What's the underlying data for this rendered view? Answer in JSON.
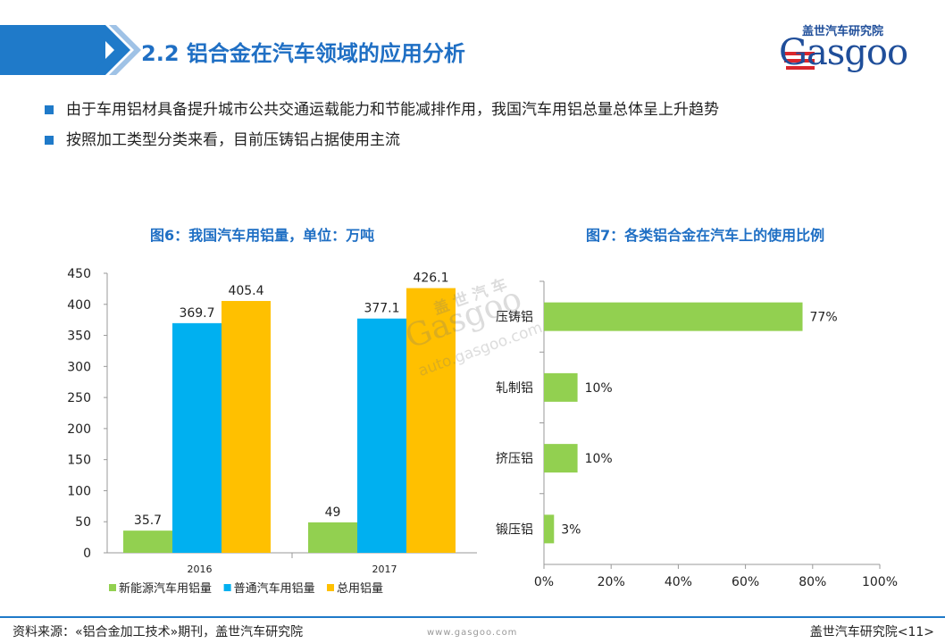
{
  "header": {
    "title": "2.2 铝合金在汽车领域的应用分析",
    "accent_color": "#1f7ac9"
  },
  "logo": {
    "cn": "盖世汽车研究院",
    "en": "Gasgoo"
  },
  "bullets": [
    "由于车用铝材具备提升城市公共交通运载能力和节能减排作用，我国汽车用铝总量总体呈上升趋势",
    "按照加工类型分类来看，目前压铸铝占据使用主流"
  ],
  "watermark": {
    "cn": "盖 世 汽 车",
    "en": "Gasgoo",
    "url": "auto.gasgoo.com"
  },
  "chart_data": [
    {
      "type": "bar",
      "title": "图6：我国汽车用铝量，单位：万吨",
      "categories": [
        "2016",
        "2017"
      ],
      "series": [
        {
          "name": "新能源汽车用铝量",
          "values": [
            35.7,
            49
          ],
          "labels": [
            "35.7",
            "49"
          ],
          "color": "#92d050"
        },
        {
          "name": "普通汽车用铝量",
          "values": [
            369.7,
            377.1
          ],
          "labels": [
            "369.7",
            "377.1"
          ],
          "color": "#00b0f0"
        },
        {
          "name": "总用铝量",
          "values": [
            405.4,
            426.1
          ],
          "labels": [
            "405.4",
            "426.1"
          ],
          "color": "#ffc000"
        }
      ],
      "ylim": [
        0,
        450
      ],
      "yticks": [
        0,
        50,
        100,
        150,
        200,
        250,
        300,
        350,
        400,
        450
      ],
      "grid": false,
      "legend": "bottom"
    },
    {
      "type": "bar",
      "orientation": "horizontal",
      "title": "图7：各类铝合金在汽车上的使用比例",
      "categories": [
        "压铸铝",
        "轧制铝",
        "挤压铝",
        "锻压铝"
      ],
      "values": [
        77,
        10,
        10,
        3
      ],
      "labels": [
        "77%",
        "10%",
        "10%",
        "3%"
      ],
      "color": "#92d050",
      "xlim": [
        0,
        100
      ],
      "xticks": [
        "0%",
        "20%",
        "40%",
        "60%",
        "80%",
        "100%"
      ],
      "grid": false
    }
  ],
  "footer": {
    "source": "资料来源：«铝合金加工技术»期刊，盖世汽车研究院",
    "website": "www.gasgoo.com",
    "page": "盖世汽车研究院<11>"
  }
}
